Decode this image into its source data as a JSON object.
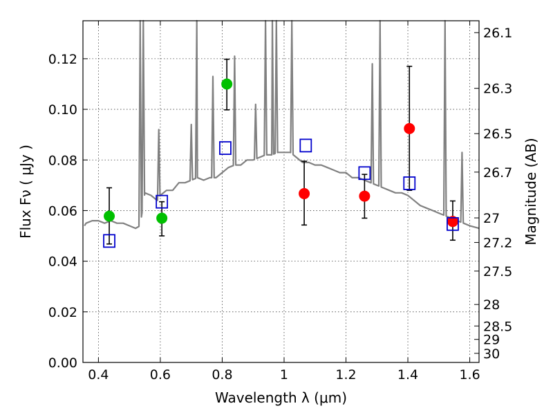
{
  "chart_data": {
    "type": "scatter",
    "xlabel": "Wavelength  λ (μm)",
    "ylabel": "Flux  Fν  ( μJy )",
    "ylabel_right": "Magnitude (AB)",
    "xlim": [
      0.35,
      1.63
    ],
    "ylim": [
      0.0,
      0.135
    ],
    "xticks": [
      0.4,
      0.6,
      0.8,
      1.0,
      1.2,
      1.4,
      1.6
    ],
    "xtick_labels": [
      "0.4",
      "0.6",
      "0.8",
      "1",
      "1.2",
      "1.4",
      "1.6"
    ],
    "yticks": [
      0.0,
      0.02,
      0.04,
      0.06,
      0.08,
      0.1,
      0.12
    ],
    "ytick_labels": [
      "0.00",
      "0.02",
      "0.04",
      "0.06",
      "0.08",
      "0.10",
      "0.12"
    ],
    "right_ticks": [
      {
        "label": "26.1",
        "flux": 0.1303
      },
      {
        "label": "26.3",
        "flux": 0.1083
      },
      {
        "label": "26.5",
        "flux": 0.0904
      },
      {
        "label": "26.7",
        "flux": 0.0752
      },
      {
        "label": "27",
        "flux": 0.0571
      },
      {
        "label": "27.2",
        "flux": 0.0474
      },
      {
        "label": "27.5",
        "flux": 0.0361
      },
      {
        "label": "28",
        "flux": 0.0229
      },
      {
        "label": "28.5",
        "flux": 0.0144
      },
      {
        "label": "29",
        "flux": 0.0091
      },
      {
        "label": "30",
        "flux": 0.0036
      }
    ],
    "grid": true,
    "colors": {
      "model": "#808080",
      "green": "#00c000",
      "red": "#ff0000",
      "square": "#0000cc",
      "errorbar": "#000000"
    },
    "series": [
      {
        "marker": "circle",
        "color": "green",
        "points": [
          {
            "x": 0.435,
            "y": 0.0578,
            "yerr": [
              0.0468,
              0.069
            ]
          },
          {
            "x": 0.605,
            "y": 0.057,
            "yerr": [
              0.05,
              0.0635
            ]
          },
          {
            "x": 0.815,
            "y": 0.11,
            "yerr": [
              0.0998,
              0.1198
            ]
          }
        ]
      },
      {
        "marker": "circle",
        "color": "red",
        "points": [
          {
            "x": 1.065,
            "y": 0.0667,
            "yerr": [
              0.0543,
              0.0795
            ]
          },
          {
            "x": 1.26,
            "y": 0.0657,
            "yerr": [
              0.057,
              0.0743
            ]
          },
          {
            "x": 1.405,
            "y": 0.0924,
            "yerr": [
              0.068,
              0.117
            ]
          },
          {
            "x": 1.545,
            "y": 0.0557,
            "yerr": [
              0.0483,
              0.0638
            ]
          }
        ]
      },
      {
        "marker": "square",
        "color": "square",
        "points": [
          {
            "x": 0.435,
            "y": 0.048
          },
          {
            "x": 0.605,
            "y": 0.0635
          },
          {
            "x": 0.81,
            "y": 0.0847
          },
          {
            "x": 1.07,
            "y": 0.0857
          },
          {
            "x": 1.26,
            "y": 0.0748
          },
          {
            "x": 1.405,
            "y": 0.0708
          },
          {
            "x": 1.545,
            "y": 0.0547
          }
        ]
      }
    ],
    "model_spectrum": {
      "x": [
        0.355,
        0.36,
        0.38,
        0.4,
        0.42,
        0.44,
        0.46,
        0.48,
        0.5,
        0.52,
        0.535,
        0.55,
        0.57,
        0.59,
        0.6,
        0.62,
        0.64,
        0.66,
        0.68,
        0.7,
        0.72,
        0.74,
        0.76,
        0.78,
        0.8,
        0.82,
        0.84,
        0.86,
        0.88,
        0.9,
        0.92,
        0.94,
        0.96,
        0.98,
        1.0,
        1.02,
        1.04,
        1.06,
        1.08,
        1.1,
        1.12,
        1.14,
        1.16,
        1.18,
        1.2,
        1.22,
        1.24,
        1.26,
        1.28,
        1.3,
        1.32,
        1.34,
        1.36,
        1.38,
        1.4,
        1.42,
        1.44,
        1.46,
        1.48,
        1.5,
        1.52,
        1.54,
        1.56,
        1.58,
        1.6,
        1.63
      ],
      "y": [
        0.054,
        0.055,
        0.056,
        0.056,
        0.055,
        0.056,
        0.055,
        0.055,
        0.054,
        0.053,
        0.054,
        0.067,
        0.066,
        0.064,
        0.066,
        0.068,
        0.068,
        0.071,
        0.071,
        0.072,
        0.073,
        0.072,
        0.073,
        0.073,
        0.075,
        0.077,
        0.078,
        0.078,
        0.08,
        0.08,
        0.081,
        0.082,
        0.082,
        0.083,
        0.083,
        0.083,
        0.081,
        0.079,
        0.079,
        0.078,
        0.078,
        0.077,
        0.076,
        0.075,
        0.075,
        0.073,
        0.073,
        0.072,
        0.071,
        0.07,
        0.069,
        0.068,
        0.067,
        0.067,
        0.066,
        0.064,
        0.062,
        0.061,
        0.06,
        0.059,
        0.058,
        0.057,
        0.056,
        0.055,
        0.054,
        0.053
      ],
      "emission_lines": [
        {
          "x": 0.535,
          "peak": 0.135
        },
        {
          "x": 0.545,
          "peak": 0.135
        },
        {
          "x": 0.595,
          "peak": 0.092
        },
        {
          "x": 0.7,
          "peak": 0.094
        },
        {
          "x": 0.718,
          "peak": 0.135
        },
        {
          "x": 0.77,
          "peak": 0.113
        },
        {
          "x": 0.84,
          "peak": 0.121
        },
        {
          "x": 0.908,
          "peak": 0.102
        },
        {
          "x": 0.94,
          "peak": 0.135
        },
        {
          "x": 0.962,
          "peak": 0.135
        },
        {
          "x": 0.975,
          "peak": 0.135
        },
        {
          "x": 1.025,
          "peak": 0.135
        },
        {
          "x": 1.285,
          "peak": 0.118
        },
        {
          "x": 1.31,
          "peak": 0.135
        },
        {
          "x": 1.52,
          "peak": 0.135
        },
        {
          "x": 1.575,
          "peak": 0.083
        }
      ]
    }
  }
}
